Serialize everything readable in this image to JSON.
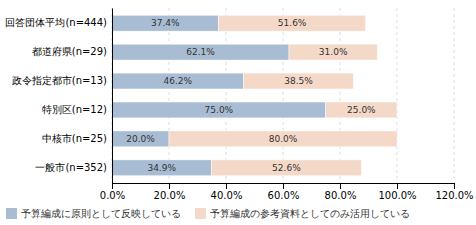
{
  "chart_data": {
    "type": "bar",
    "orientation": "horizontal",
    "stacked": true,
    "data_labels": true,
    "grid": true,
    "legend": "bottom",
    "categories": [
      "回答団体平均(n=444)",
      "都道府県(n=29)",
      "政令指定都市(n=13)",
      "特別区(n=12)",
      "中核市(n=25)",
      "一般市(n=352)"
    ],
    "series": [
      {
        "name": "予算編成に原則として反映している",
        "color": "#a8bdd4",
        "values": [
          37.4,
          62.1,
          46.2,
          75.0,
          20.0,
          34.9
        ],
        "value_labels": [
          "37.4%",
          "62.1%",
          "46.2%",
          "75.0%",
          "20.0%",
          "34.9%"
        ]
      },
      {
        "name": "予算編成の参考資料としてのみ活用している",
        "color": "#f5d9c8",
        "values": [
          51.6,
          31.0,
          38.5,
          25.0,
          80.0,
          52.6
        ],
        "value_labels": [
          "51.6%",
          "31.0%",
          "38.5%",
          "25.0%",
          "80.0%",
          "52.6%"
        ]
      }
    ],
    "xlim": [
      0,
      120
    ],
    "xticks": [
      {
        "value": 0,
        "label": "0.0%"
      },
      {
        "value": 20,
        "label": "20.0%"
      },
      {
        "value": 40,
        "label": "40.0%"
      },
      {
        "value": 60,
        "label": "60.0%"
      },
      {
        "value": 80,
        "label": "80.0%"
      },
      {
        "value": 100,
        "label": "100.0%"
      },
      {
        "value": 120,
        "label": "120.0%"
      }
    ]
  }
}
